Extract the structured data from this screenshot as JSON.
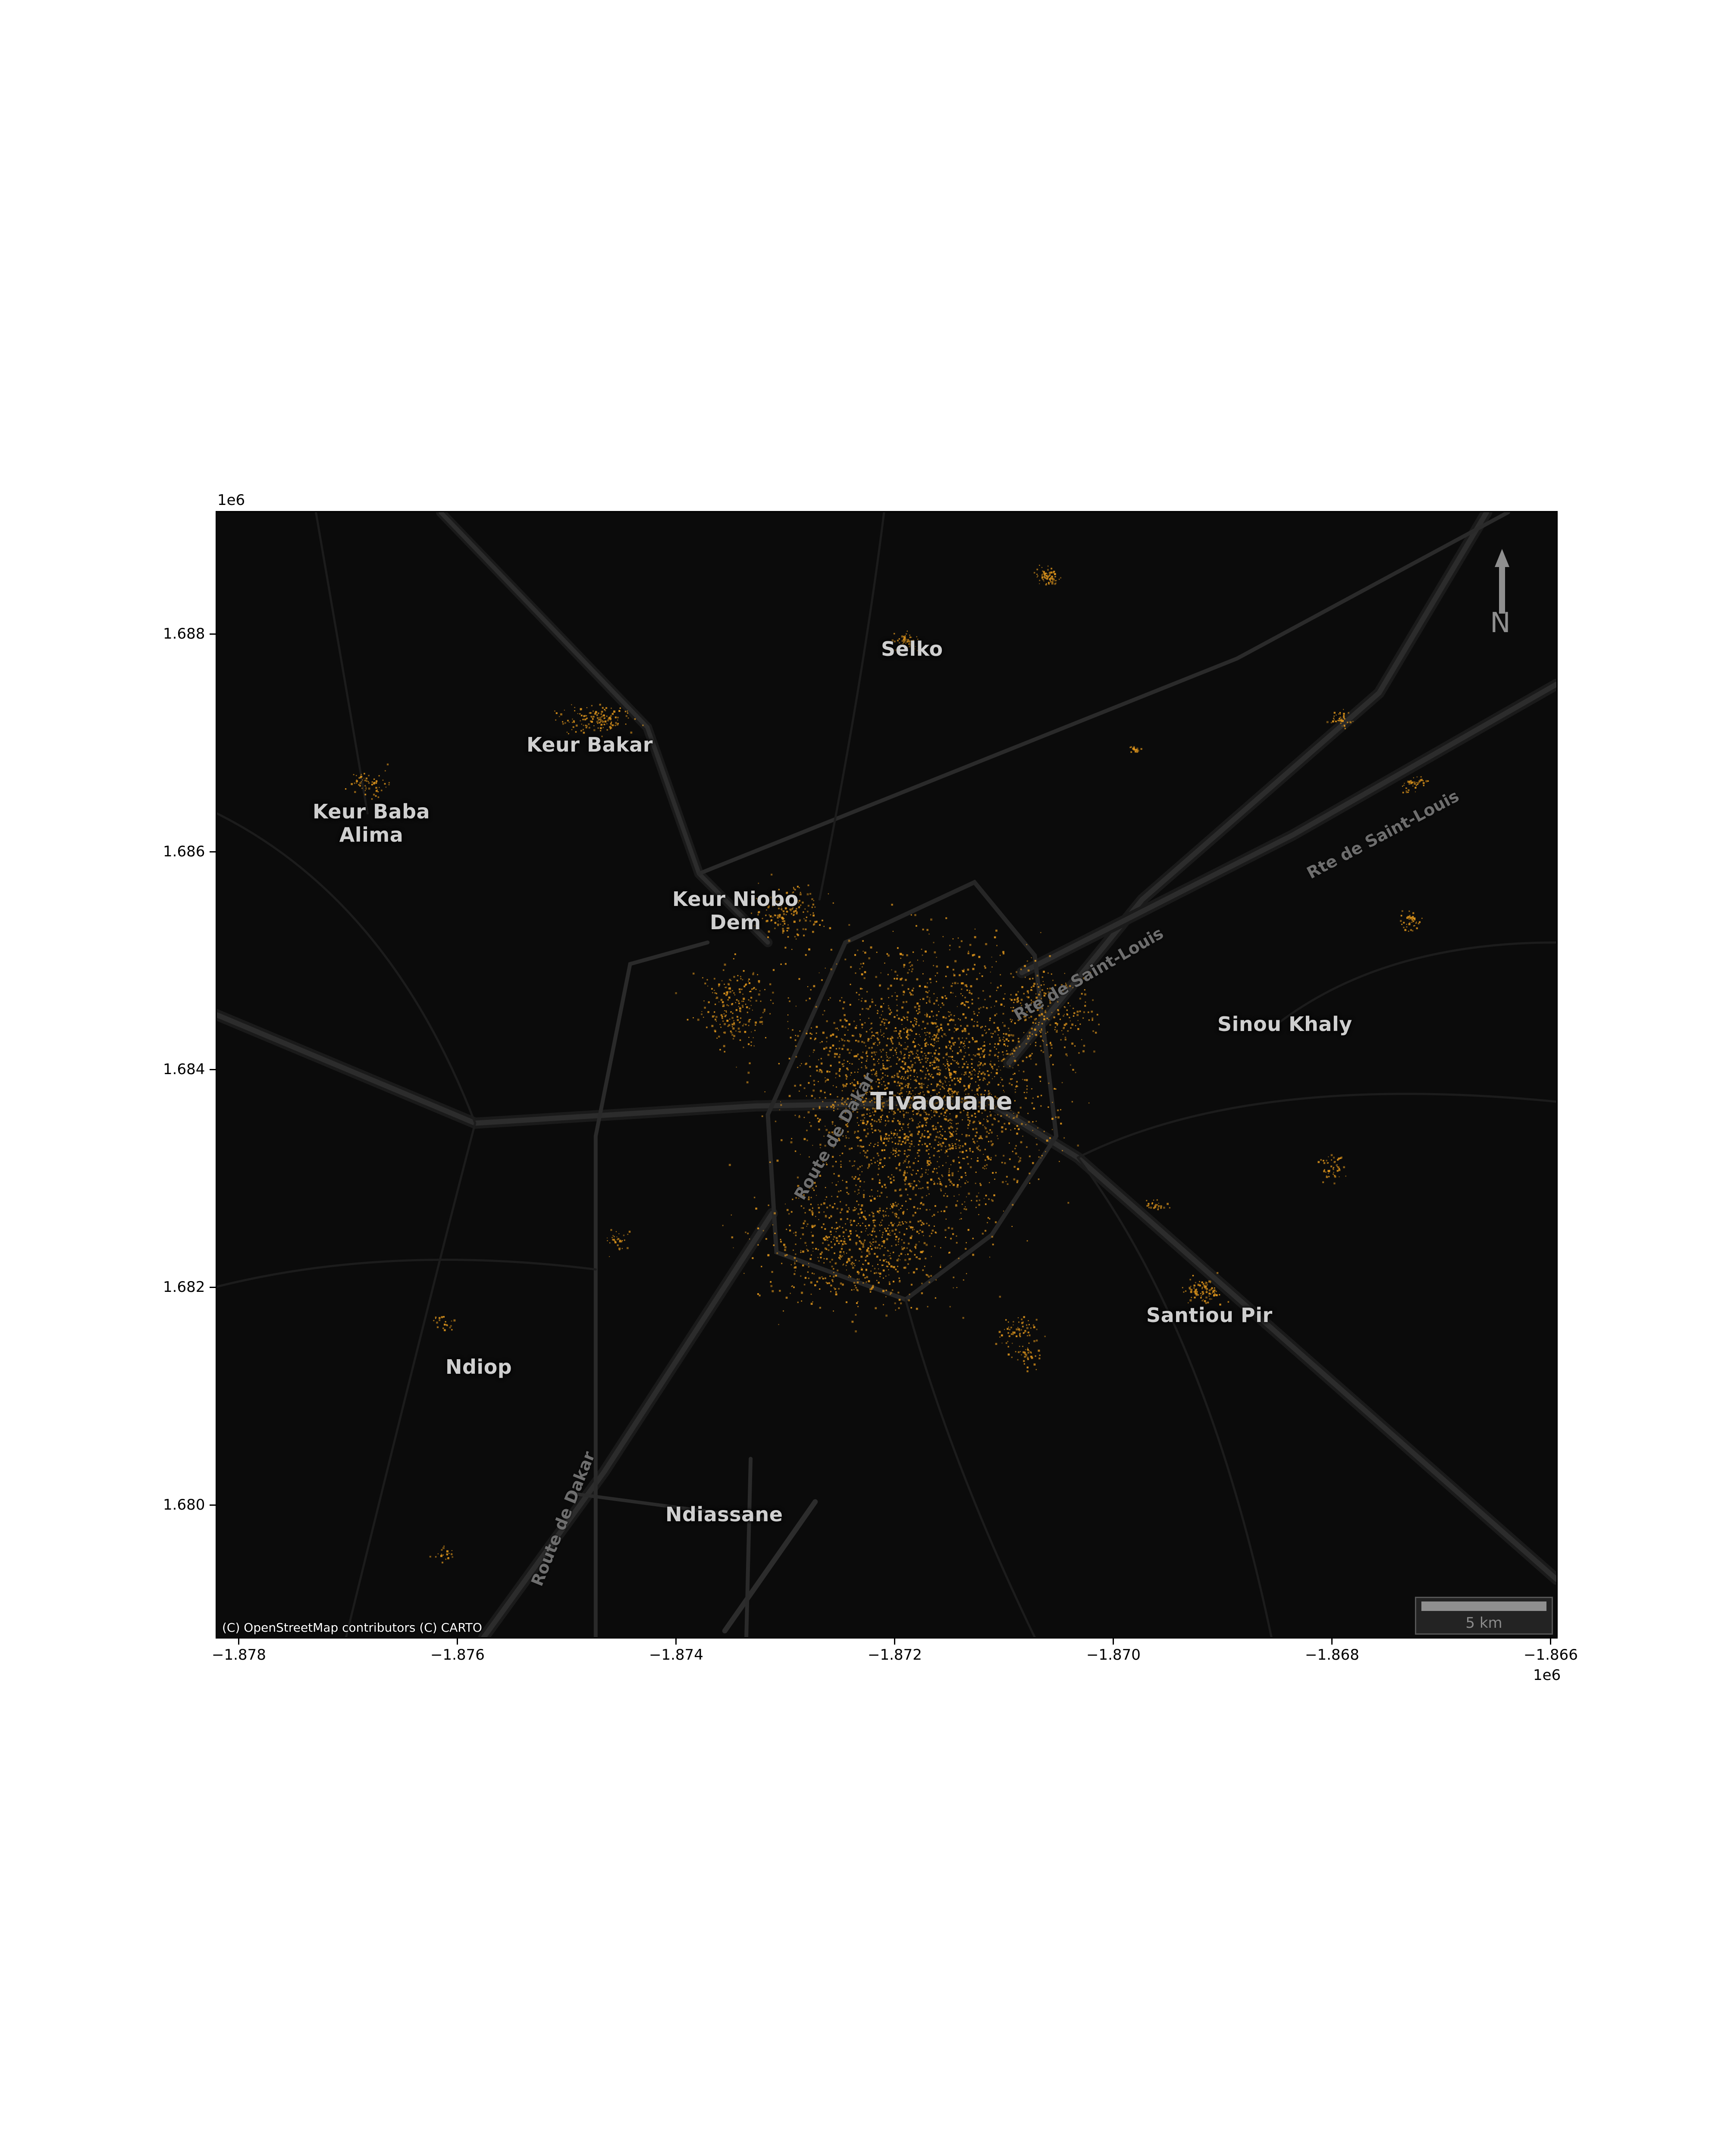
{
  "map": {
    "place_labels": [
      {
        "id": "selko",
        "text": "Selko"
      },
      {
        "id": "keur-bakar",
        "text": "Keur Bakar"
      },
      {
        "id": "keur-baba-alima",
        "text": "Keur Baba\nAlima"
      },
      {
        "id": "keur-niobo-dem",
        "text": "Keur Niobo\nDem"
      },
      {
        "id": "tivaouane",
        "text": "Tivaouane"
      },
      {
        "id": "sinou-khaly",
        "text": "Sinou Khaly"
      },
      {
        "id": "santiou-pir",
        "text": "Santiou Pir"
      },
      {
        "id": "ndiop",
        "text": "Ndiop"
      },
      {
        "id": "ndiassane",
        "text": "Ndiassane"
      }
    ],
    "road_labels": [
      {
        "id": "rte-saint-louis-ne",
        "text": "Rte de Saint-Louis"
      },
      {
        "id": "rte-saint-louis-center",
        "text": "Rte de Saint-Louis"
      },
      {
        "id": "route-de-dakar-center",
        "text": "Route de Dakar"
      },
      {
        "id": "route-de-dakar-south",
        "text": "Route de Dakar"
      }
    ],
    "attribution": "(C) OpenStreetMap contributors (C) CARTO",
    "north_label": "N",
    "scale_label": "5 km",
    "colors": {
      "background": "#0b0b0b",
      "roads": "#2a2a2a",
      "road_casing": "#1a1a1a",
      "settlements": "#e0961c"
    }
  },
  "axes": {
    "x_ticks": [
      "−1.878",
      "−1.876",
      "−1.874",
      "−1.872",
      "−1.870",
      "−1.868",
      "−1.866"
    ],
    "x_offset": "1e6",
    "y_ticks": [
      "1.688",
      "1.686",
      "1.684",
      "1.682",
      "1.680"
    ],
    "y_offset": "1e6"
  }
}
